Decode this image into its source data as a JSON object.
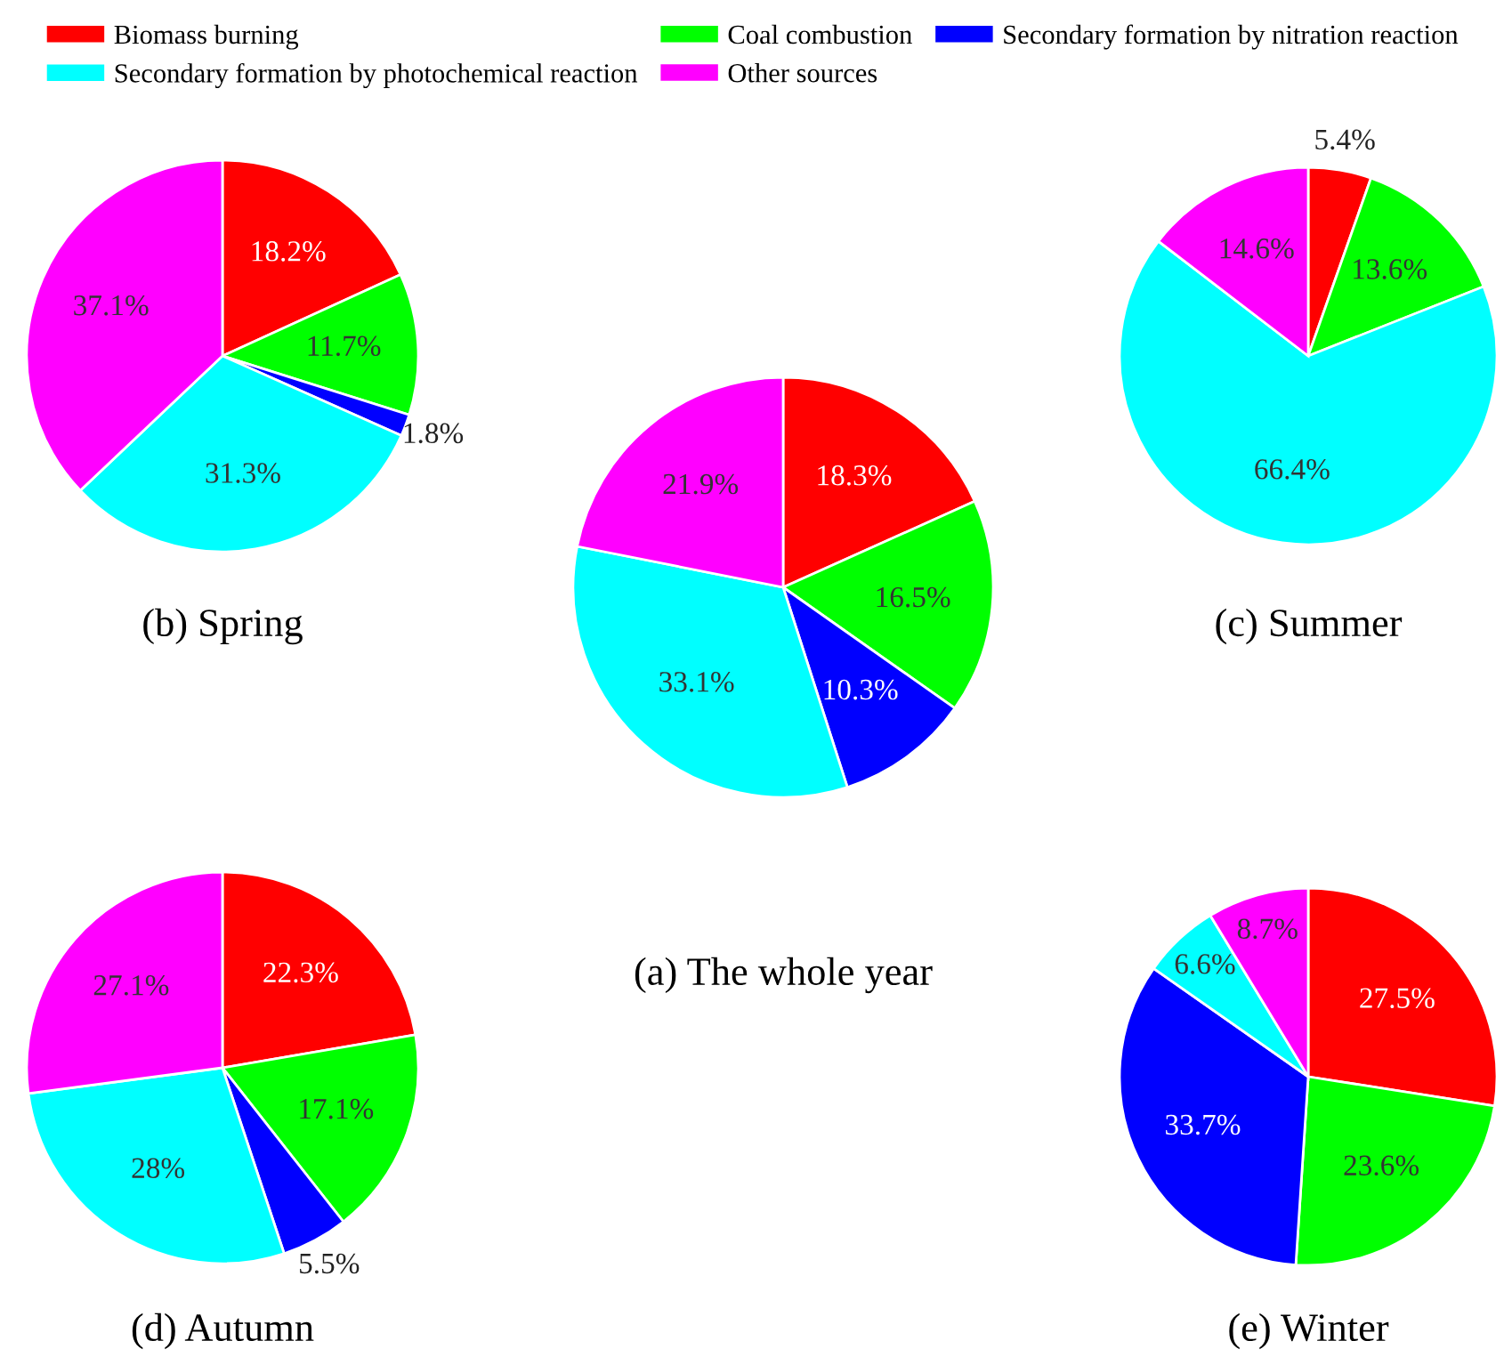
{
  "chart_data": [
    {
      "type": "pie",
      "title": "(b) Spring",
      "categories": [
        "Biomass burning",
        "Coal combustion",
        "Secondary formation by nitration reaction",
        "Secondary formation by photochemical reaction",
        "Other sources"
      ],
      "values": [
        18.2,
        11.7,
        1.8,
        31.3,
        37.1
      ],
      "value_labels": [
        "18.2%",
        "11.7%",
        "1.8%",
        "31.3%",
        "37.1%"
      ],
      "colors": [
        "#ff0000",
        "#00ff00",
        "#0000ff",
        "#00ffff",
        "#ff00ff"
      ],
      "legend": "top"
    },
    {
      "type": "pie",
      "title": "(c) Summer",
      "categories": [
        null,
        null,
        null,
        null
      ],
      "values": [
        5.4,
        13.6,
        66.4,
        14.6
      ],
      "value_labels": [
        "5.4%",
        "13.6%",
        "66.4%",
        "14.6%"
      ],
      "colors": [
        "#ff0000",
        "#00ff00",
        "#00ffff",
        "#ff00ff"
      ]
    },
    {
      "type": "pie",
      "title": "(a) The whole year",
      "categories": [
        null,
        null,
        null,
        null,
        null
      ],
      "values": [
        18.3,
        16.5,
        10.3,
        33.1,
        21.9
      ],
      "value_labels": [
        "18.3%",
        "16.5%",
        "10.3%",
        "33.1%",
        "21.9%"
      ],
      "colors": [
        "#ff0000",
        "#00ff00",
        "#0000ff",
        "#00ffff",
        "#ff00ff"
      ]
    },
    {
      "type": "pie",
      "title": "(d) Autumn",
      "categories": [
        null,
        null,
        null,
        null,
        null
      ],
      "values": [
        22.3,
        17.1,
        5.5,
        28,
        27.1
      ],
      "value_labels": [
        "22.3%",
        "17.1%",
        "5.5%",
        "28%",
        "27.1%"
      ],
      "colors": [
        "#ff0000",
        "#00ff00",
        "#0000ff",
        "#00ffff",
        "#ff00ff"
      ]
    },
    {
      "type": "pie",
      "title": "(e) Winter",
      "categories": [
        null,
        null,
        null,
        null,
        null
      ],
      "values": [
        27.5,
        23.6,
        33.7,
        6.6,
        8.7
      ],
      "value_labels": [
        "27.5%",
        "23.6%",
        "33.7%",
        "6.6%",
        "8.7%"
      ],
      "colors": [
        "#ff0000",
        "#00ff00",
        "#0000ff",
        "#00ffff",
        "#ff00ff"
      ]
    }
  ]
}
